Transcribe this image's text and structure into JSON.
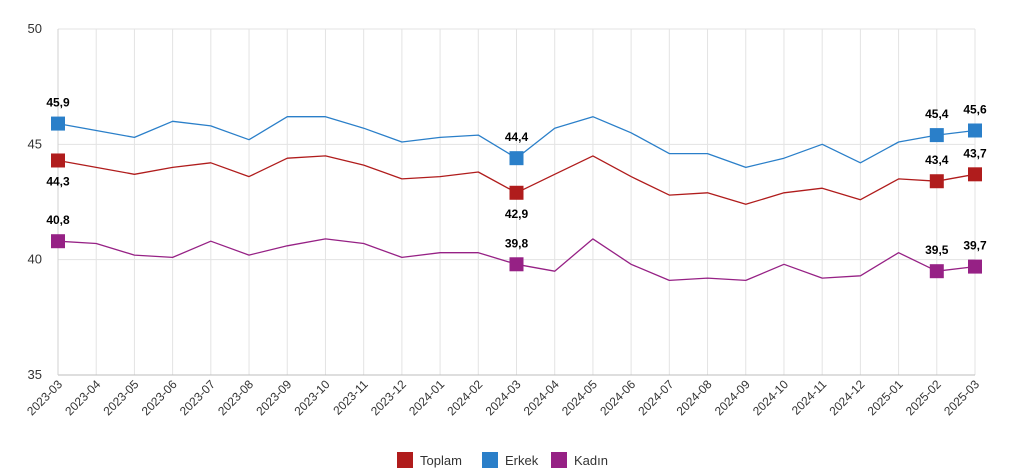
{
  "chart_data": {
    "type": "line",
    "title": "",
    "xlabel": "",
    "ylabel": "",
    "ylim": [
      35,
      50
    ],
    "yticks": [
      "35",
      "40",
      "45",
      "50"
    ],
    "grid": true,
    "legend_position": "bottom",
    "categories": [
      "2023-03",
      "2023-04",
      "2023-05",
      "2023-06",
      "2023-07",
      "2023-08",
      "2023-09",
      "2023-10",
      "2023-11",
      "2023-12",
      "2024-01",
      "2024-02",
      "2024-03",
      "2024-04",
      "2024-05",
      "2024-06",
      "2024-07",
      "2024-08",
      "2024-09",
      "2024-10",
      "2024-11",
      "2024-12",
      "2025-01",
      "2025-02",
      "2025-03"
    ],
    "series": [
      {
        "name": "Toplam",
        "color": "#b01c1c",
        "values": [
          44.3,
          44.0,
          43.7,
          44.0,
          44.2,
          43.6,
          44.4,
          44.5,
          44.1,
          43.5,
          43.6,
          43.8,
          42.9,
          43.7,
          44.5,
          43.6,
          42.8,
          42.9,
          42.4,
          42.9,
          43.1,
          42.6,
          43.5,
          43.4,
          43.7
        ],
        "labels": [
          {
            "index": 0,
            "text": "44,3",
            "pos": "below"
          },
          {
            "index": 12,
            "text": "42,9",
            "pos": "below"
          },
          {
            "index": 23,
            "text": "43,4",
            "pos": "above"
          },
          {
            "index": 24,
            "text": "43,7",
            "pos": "above"
          }
        ]
      },
      {
        "name": "Erkek",
        "color": "#2a7fc9",
        "values": [
          45.9,
          45.6,
          45.3,
          46.0,
          45.8,
          45.2,
          46.2,
          46.2,
          45.7,
          45.1,
          45.3,
          45.4,
          44.4,
          45.7,
          46.2,
          45.5,
          44.6,
          44.6,
          44.0,
          44.4,
          45.0,
          44.2,
          45.1,
          45.4,
          45.6
        ],
        "labels": [
          {
            "index": 0,
            "text": "45,9",
            "pos": "above"
          },
          {
            "index": 12,
            "text": "44,4",
            "pos": "above"
          },
          {
            "index": 23,
            "text": "45,4",
            "pos": "above"
          },
          {
            "index": 24,
            "text": "45,6",
            "pos": "above"
          }
        ]
      },
      {
        "name": "Kadın",
        "color": "#962185",
        "values": [
          40.8,
          40.7,
          40.2,
          40.1,
          40.8,
          40.2,
          40.6,
          40.9,
          40.7,
          40.1,
          40.3,
          40.3,
          39.8,
          39.5,
          40.9,
          39.8,
          39.1,
          39.2,
          39.1,
          39.8,
          39.2,
          39.3,
          40.3,
          39.5,
          39.7
        ],
        "labels": [
          {
            "index": 0,
            "text": "40,8",
            "pos": "above"
          },
          {
            "index": 12,
            "text": "39,8",
            "pos": "above"
          },
          {
            "index": 23,
            "text": "39,5",
            "pos": "above"
          },
          {
            "index": 24,
            "text": "39,7",
            "pos": "above"
          }
        ]
      }
    ],
    "marker_indices": [
      0,
      12,
      23,
      24
    ]
  }
}
